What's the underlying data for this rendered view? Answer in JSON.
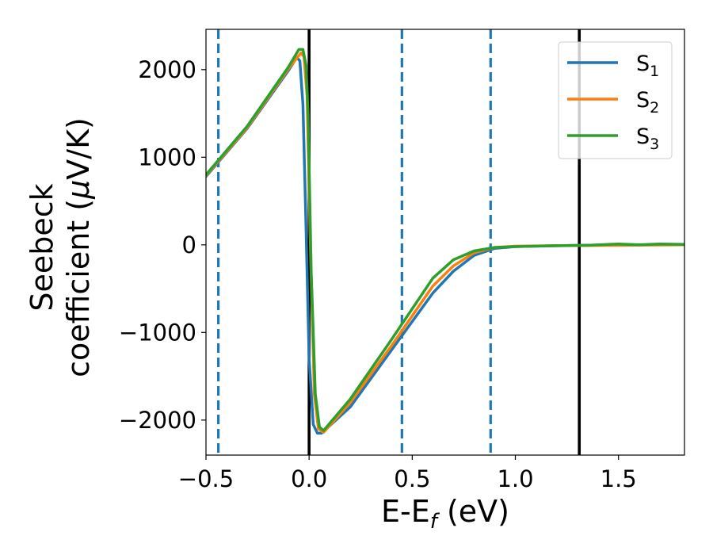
{
  "chart_data": {
    "type": "line",
    "xlabel": {
      "base": "E-E",
      "sub": "f",
      "unit": " (eV)"
    },
    "ylabel": {
      "line1": "Seebeck",
      "line2_prefix": "coefficient  (",
      "mu": "μ",
      "line2_suffix": "V/K)"
    },
    "xlim": [
      -0.5,
      1.82
    ],
    "ylim": [
      -2400,
      2460
    ],
    "x_ticks": [
      -0.5,
      0.0,
      0.5,
      1.0,
      1.5
    ],
    "x_tick_labels": [
      "−0.5",
      "0.0",
      "0.5",
      "1.0",
      "1.5"
    ],
    "y_ticks": [
      -2000,
      -1000,
      0,
      1000,
      2000
    ],
    "y_tick_labels": [
      "−2000",
      "−1000",
      "0",
      "1000",
      "2000"
    ],
    "legend_position": "top-right",
    "vertical_lines": [
      {
        "x": -0.44,
        "style": "dashed",
        "color": "#1f77b4"
      },
      {
        "x": 0.0,
        "style": "solid",
        "color": "#000000"
      },
      {
        "x": 0.45,
        "style": "dashed",
        "color": "#1f77b4"
      },
      {
        "x": 0.88,
        "style": "dashed",
        "color": "#1f77b4"
      },
      {
        "x": 1.31,
        "style": "solid",
        "color": "#000000"
      }
    ],
    "series": [
      {
        "name": "S",
        "sub": "1",
        "color": "#1f77b4",
        "points": [
          [
            -0.5,
            780
          ],
          [
            -0.3,
            1330
          ],
          [
            -0.1,
            1990
          ],
          [
            -0.06,
            2140
          ],
          [
            -0.045,
            2100
          ],
          [
            -0.03,
            1600
          ],
          [
            -0.015,
            200
          ],
          [
            0.0,
            -1300
          ],
          [
            0.02,
            -2050
          ],
          [
            0.04,
            -2150
          ],
          [
            0.06,
            -2150
          ],
          [
            0.2,
            -1850
          ],
          [
            0.4,
            -1200
          ],
          [
            0.6,
            -550
          ],
          [
            0.7,
            -300
          ],
          [
            0.8,
            -120
          ],
          [
            0.9,
            -40
          ],
          [
            1.0,
            -20
          ],
          [
            1.2,
            -10
          ],
          [
            1.5,
            0
          ],
          [
            1.82,
            0
          ]
        ]
      },
      {
        "name": "S",
        "sub": "2",
        "color": "#ff7f0e",
        "points": [
          [
            -0.5,
            790
          ],
          [
            -0.3,
            1340
          ],
          [
            -0.1,
            2010
          ],
          [
            -0.04,
            2190
          ],
          [
            -0.025,
            2150
          ],
          [
            -0.01,
            1700
          ],
          [
            0.005,
            100
          ],
          [
            0.025,
            -1700
          ],
          [
            0.045,
            -2100
          ],
          [
            0.07,
            -2140
          ],
          [
            0.2,
            -1800
          ],
          [
            0.4,
            -1150
          ],
          [
            0.6,
            -470
          ],
          [
            0.7,
            -240
          ],
          [
            0.8,
            -90
          ],
          [
            0.9,
            -30
          ],
          [
            1.0,
            -15
          ],
          [
            1.2,
            -10
          ],
          [
            1.5,
            -5
          ],
          [
            1.82,
            0
          ]
        ]
      },
      {
        "name": "S",
        "sub": "3",
        "color": "#2ca02c",
        "points": [
          [
            -0.5,
            800
          ],
          [
            -0.3,
            1355
          ],
          [
            -0.1,
            2030
          ],
          [
            -0.05,
            2230
          ],
          [
            -0.03,
            2230
          ],
          [
            -0.015,
            2050
          ],
          [
            -0.005,
            1500
          ],
          [
            0.01,
            -300
          ],
          [
            0.03,
            -1700
          ],
          [
            0.05,
            -2080
          ],
          [
            0.07,
            -2120
          ],
          [
            0.2,
            -1760
          ],
          [
            0.4,
            -1080
          ],
          [
            0.6,
            -380
          ],
          [
            0.7,
            -170
          ],
          [
            0.8,
            -70
          ],
          [
            0.9,
            -30
          ],
          [
            1.0,
            -20
          ],
          [
            1.2,
            -10
          ],
          [
            1.35,
            -5
          ],
          [
            1.5,
            10
          ],
          [
            1.6,
            0
          ],
          [
            1.7,
            10
          ],
          [
            1.82,
            5
          ]
        ]
      }
    ]
  }
}
